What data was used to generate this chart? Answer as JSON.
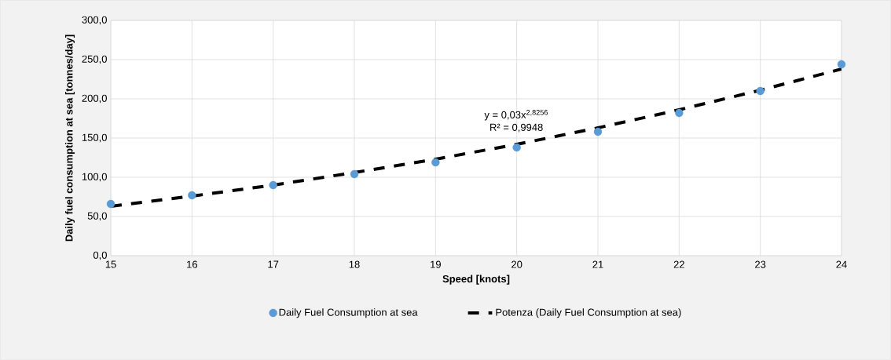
{
  "chart_data": {
    "type": "scatter",
    "xlabel": "Speed [knots]",
    "ylabel": "Daily fuel consumption at sea [tonnes/day]",
    "xlim": [
      15,
      24
    ],
    "xticks": [
      15,
      16,
      17,
      18,
      19,
      20,
      21,
      22,
      23,
      24
    ],
    "ylim": [
      0,
      300
    ],
    "yticks": [
      {
        "value": 0,
        "label": "0,0"
      },
      {
        "value": 50,
        "label": "50,0"
      },
      {
        "value": 100,
        "label": "100,0"
      },
      {
        "value": 150,
        "label": "150,0"
      },
      {
        "value": 200,
        "label": "200,0"
      },
      {
        "value": 250,
        "label": "250,0"
      },
      {
        "value": 300,
        "label": "300,0"
      }
    ],
    "grid": true,
    "legend": "bottom",
    "annotations": [
      "y = 0,03x$^{2,8256}$",
      "R² = 0,9948"
    ],
    "series": [
      {
        "name": "Daily Fuel Consumption at sea",
        "color": "#5b9bd5",
        "marker": "circle",
        "x": [
          15,
          16,
          17,
          18,
          19,
          20,
          21,
          22,
          23,
          24
        ],
        "values": [
          66,
          77,
          90,
          104,
          119,
          138,
          158,
          182,
          210,
          244
        ]
      },
      {
        "name": "Potenza (Daily Fuel Consumption at sea)",
        "type": "line",
        "color": "#000000",
        "marker": "none",
        "line_style": "dashed",
        "x": [
          15,
          16,
          17,
          18,
          19,
          20,
          21,
          22,
          23,
          24
        ],
        "values": [
          63,
          76,
          90,
          106,
          123,
          142,
          163,
          186,
          211,
          238
        ]
      }
    ]
  }
}
